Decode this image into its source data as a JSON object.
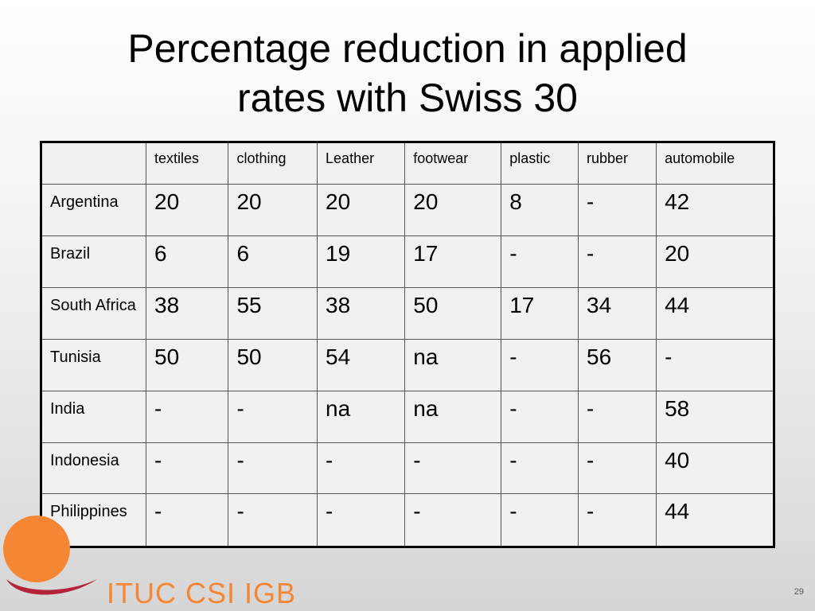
{
  "slide": {
    "title_line1": "Percentage reduction in applied",
    "title_line2": "rates with Swiss 30",
    "page_number": "29"
  },
  "table": {
    "headers": [
      "",
      "textiles",
      "clothing",
      "Leather",
      "footwear",
      "plastic",
      "rubber",
      "automobile"
    ],
    "rows": [
      {
        "label": "Argentina",
        "values": [
          "20",
          "20",
          "20",
          "20",
          "8",
          "-",
          "42"
        ]
      },
      {
        "label": "Brazil",
        "values": [
          "6",
          "6",
          "19",
          "17",
          "-",
          "-",
          "20"
        ]
      },
      {
        "label": "South Africa",
        "values": [
          "38",
          "55",
          "38",
          "50",
          "17",
          "34",
          "44"
        ]
      },
      {
        "label": "Tunisia",
        "values": [
          "50",
          "50",
          "54",
          "na",
          "-",
          "56",
          "-"
        ]
      },
      {
        "label": "India",
        "values": [
          "-",
          "-",
          "na",
          "na",
          "-",
          "-",
          "58"
        ]
      },
      {
        "label": "Indonesia",
        "values": [
          "-",
          "-",
          "-",
          "-",
          "-",
          "-",
          "40"
        ]
      },
      {
        "label": "Philippines",
        "values": [
          "-",
          "-",
          "-",
          "-",
          "-",
          "-",
          "44"
        ]
      }
    ]
  },
  "logo": {
    "text": "ITUC  CSI  IGB",
    "orange": "#f58634",
    "red": "#b5253a"
  }
}
